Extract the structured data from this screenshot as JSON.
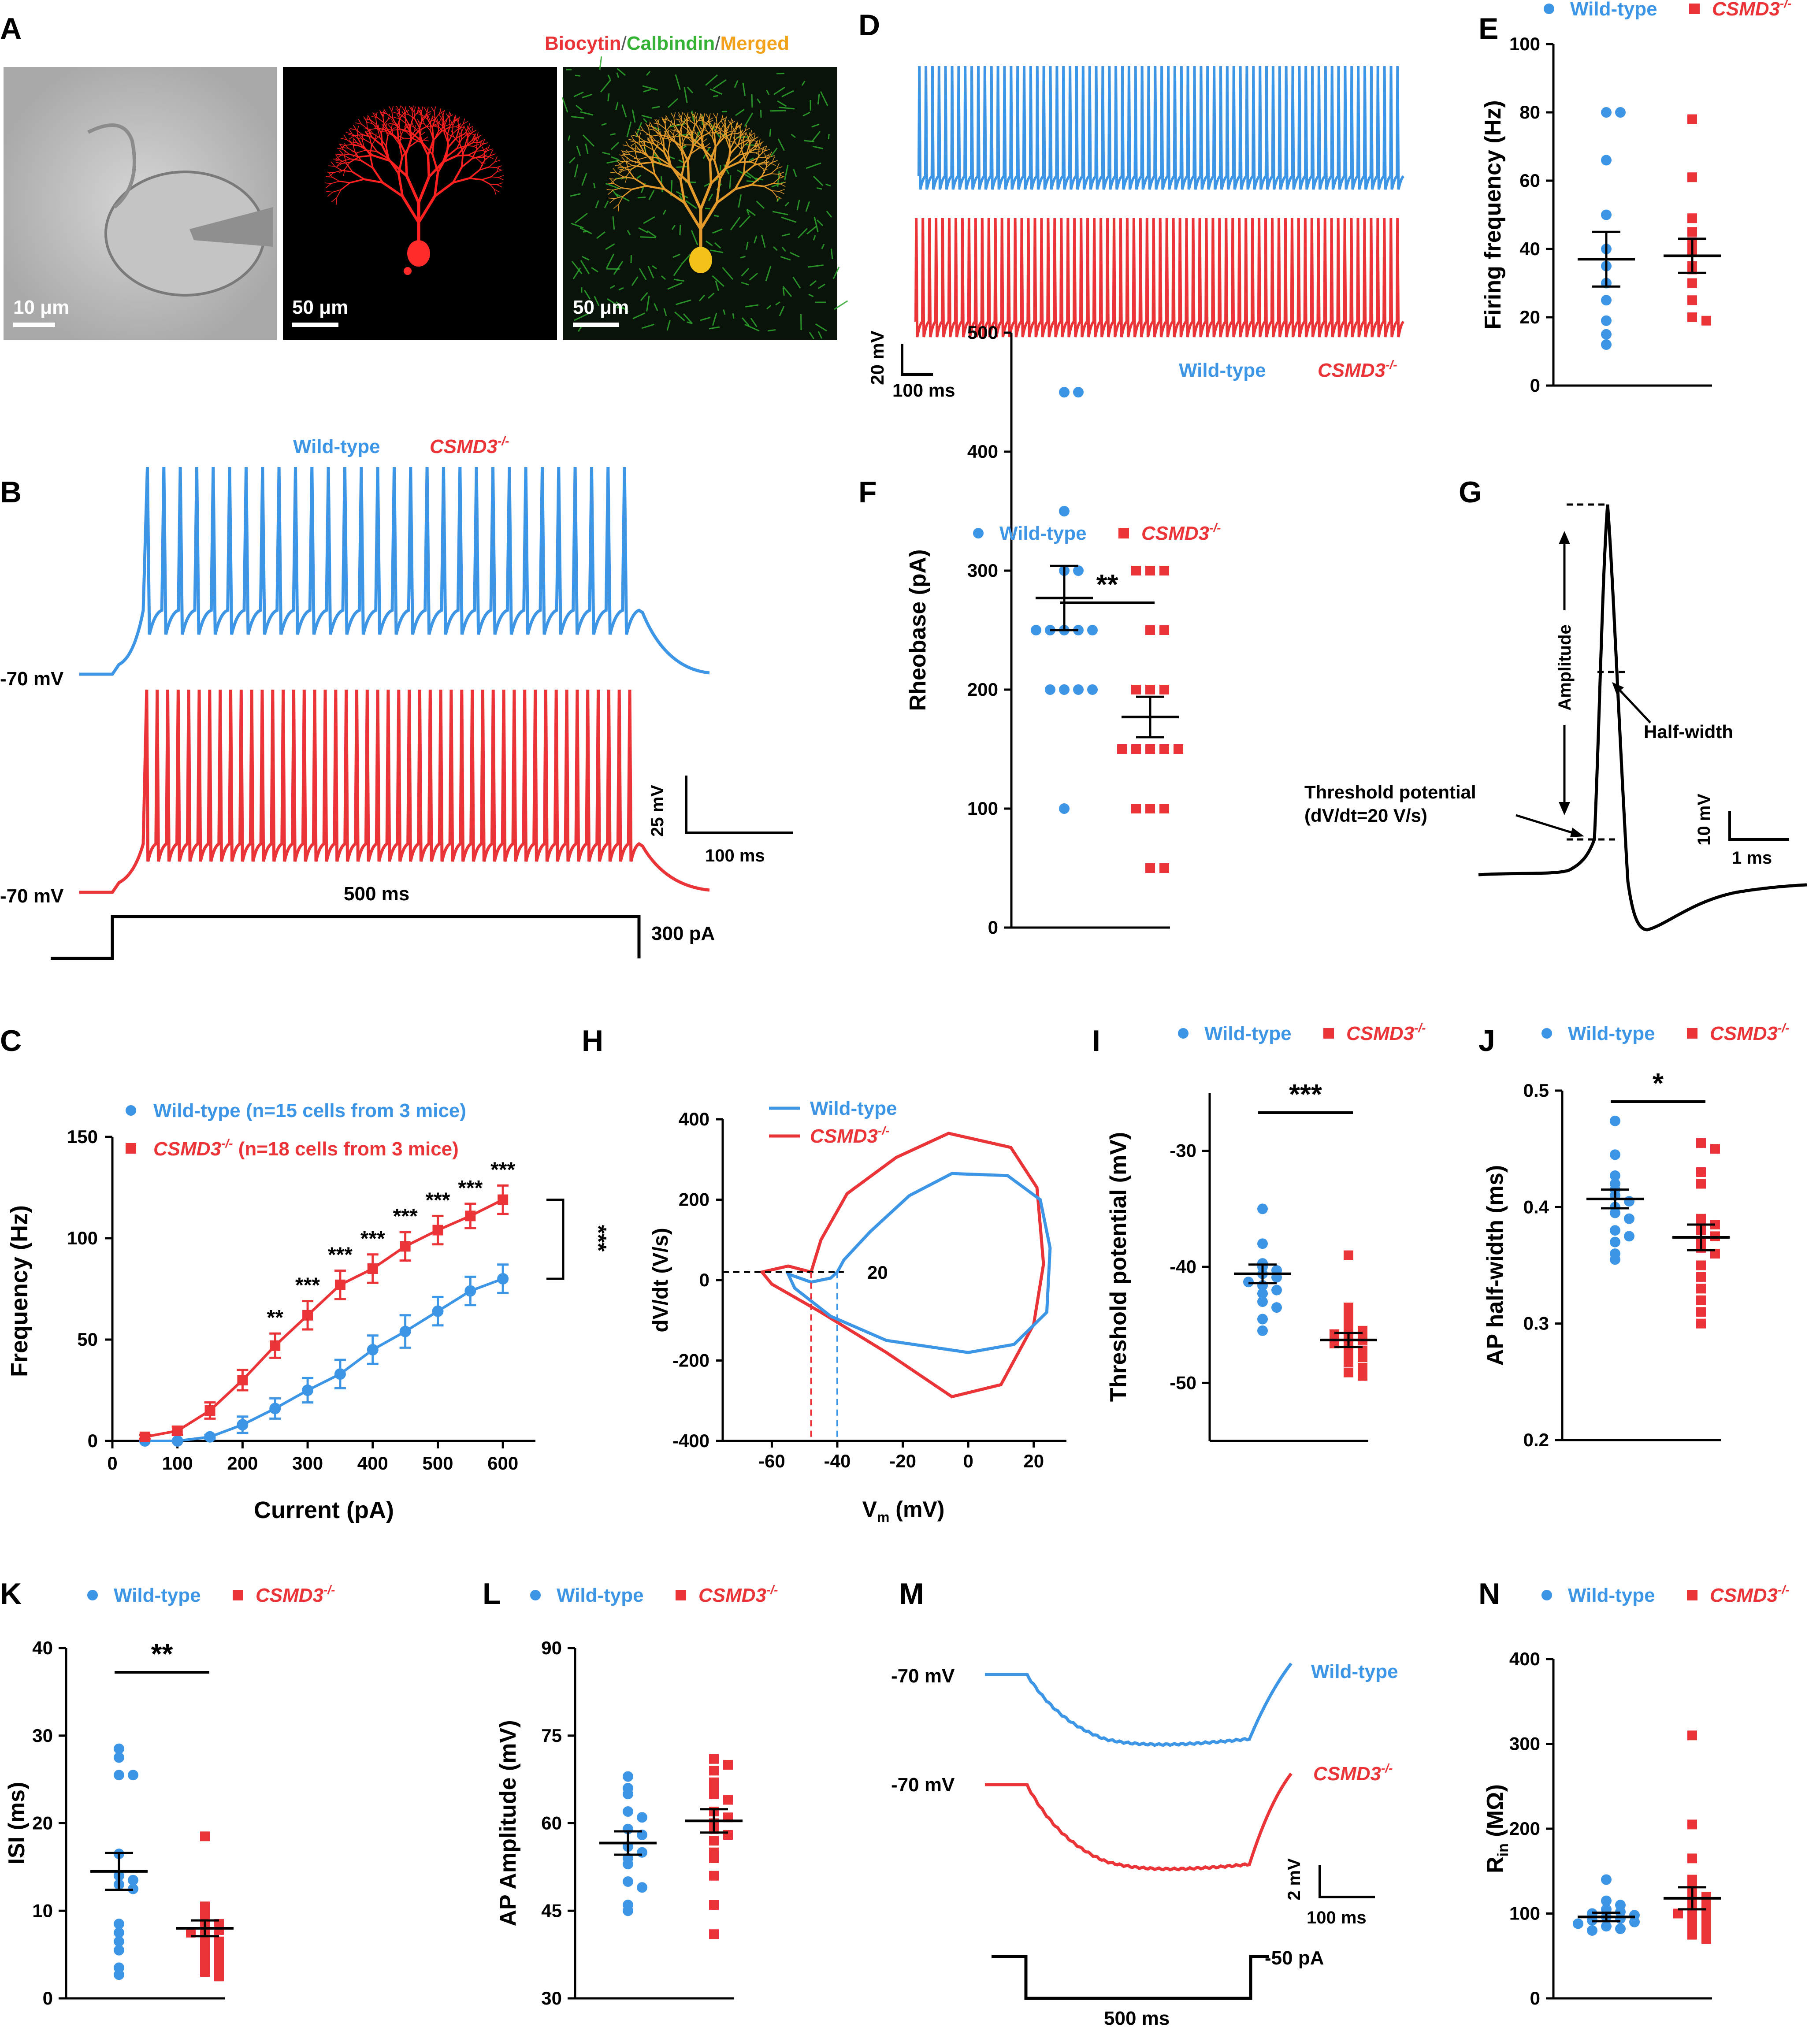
{
  "colors": {
    "wt": "#3d95e6",
    "ko": "#ea3438",
    "axis": "#000000",
    "green": "#34b234",
    "orange": "#f2a21a"
  },
  "legend": {
    "wt": "Wild-type",
    "ko": "CSMD3",
    "ko_sup": "-/-"
  },
  "panel_a": {
    "letter": "A",
    "title_parts": [
      "Biocytin",
      "/",
      "Calbindin",
      "/",
      "Merged"
    ],
    "scalebars": [
      "10 μm",
      "50 μm",
      "50 μm"
    ]
  },
  "panel_b": {
    "letter": "B",
    "vlabel_top": "-70 mV",
    "vlabel_bottom": "-70 mV",
    "duration": "500 ms",
    "current": "300 pA",
    "scale_v": "25 mV",
    "scale_t": "100 ms",
    "spikes_wt": 30,
    "spikes_ko": 47
  },
  "panel_d": {
    "letter": "D",
    "scale_v": "20 mV",
    "scale_t": "100 ms"
  },
  "panel_g": {
    "letter": "G",
    "amplitude": "Amplitude",
    "half_width": "Half-width",
    "threshold_line1": "Threshold potential",
    "threshold_line2": "(dV/dt=20 V/s)",
    "scale_v": "10 mV",
    "scale_t": "1 ms"
  },
  "panel_h": {
    "letter": "H",
    "ylabel": "dV/dt (V/s)",
    "xlabel_main": "V",
    "xlabel_sub": "m",
    "xlabel_unit": " (mV)",
    "threshold_label": "20",
    "xticks": [
      -60,
      -40,
      -20,
      0,
      20
    ],
    "yticks": [
      -400,
      -200,
      0,
      200,
      400
    ]
  },
  "panel_m": {
    "letter": "M",
    "vlabel_top": "-70 mV",
    "vlabel_bottom": "-70 mV",
    "scale_v": "2 mV",
    "scale_t": "100 ms",
    "current": "-50 pA",
    "duration": "500 ms"
  },
  "chart_data": [
    {
      "panel": "C",
      "type": "line",
      "xlabel": "Current (pA)",
      "ylabel": "Frequency (Hz)",
      "xlim": [
        0,
        650
      ],
      "ylim": [
        0,
        150
      ],
      "xticks": [
        0,
        100,
        200,
        300,
        400,
        500,
        600
      ],
      "yticks": [
        0,
        50,
        100,
        150
      ],
      "legend_wt": "Wild-type (n=15 cells from 3 mice)",
      "legend_ko": "(n=18 cells from 3 mice)",
      "x": [
        50,
        100,
        150,
        200,
        250,
        300,
        350,
        400,
        450,
        500,
        550,
        600
      ],
      "series": [
        {
          "name": "Wild-type",
          "values": [
            0,
            0,
            2,
            8,
            16,
            25,
            33,
            45,
            54,
            64,
            74,
            80
          ],
          "err": [
            0,
            0,
            1,
            4,
            5,
            6,
            7,
            7,
            8,
            7,
            7,
            7
          ]
        },
        {
          "name": "CSMD3-/-",
          "values": [
            2,
            5,
            15,
            30,
            47,
            62,
            77,
            85,
            96,
            104,
            111,
            119
          ],
          "err": [
            1,
            2,
            4,
            5,
            6,
            7,
            7,
            7,
            7,
            7,
            6,
            7
          ]
        }
      ],
      "stars": [
        "",
        "",
        "",
        "",
        "**",
        "***",
        "***",
        "***",
        "***",
        "***",
        "***",
        "***"
      ],
      "overall": "***"
    },
    {
      "panel": "E",
      "type": "scatter",
      "ylabel": "Firing frequency (Hz)",
      "ylim": [
        0,
        100
      ],
      "yticks": [
        0,
        20,
        40,
        60,
        80,
        100
      ],
      "series": [
        {
          "name": "Wild-type",
          "mean": 37,
          "sem": 8,
          "points": [
            80,
            80,
            66,
            50,
            40,
            35,
            30,
            25,
            19,
            15,
            12
          ]
        },
        {
          "name": "CSMD3-/-",
          "mean": 38,
          "sem": 5,
          "points": [
            78,
            61,
            49,
            45,
            42,
            40,
            39,
            35,
            34,
            30,
            25,
            20,
            19
          ]
        }
      ],
      "sig": ""
    },
    {
      "panel": "F",
      "type": "scatter",
      "ylabel": "Rheobase (pA)",
      "ylim": [
        0,
        500
      ],
      "yticks": [
        0,
        100,
        200,
        300,
        400,
        500
      ],
      "series": [
        {
          "name": "Wild-type",
          "mean": 277,
          "sem": 27,
          "points": [
            450,
            450,
            350,
            300,
            300,
            250,
            250,
            250,
            250,
            250,
            200,
            200,
            200,
            200,
            100
          ]
        },
        {
          "name": "CSMD3-/-",
          "mean": 177,
          "sem": 17,
          "points": [
            300,
            300,
            300,
            250,
            250,
            200,
            200,
            200,
            150,
            150,
            150,
            150,
            150,
            100,
            100,
            100,
            50,
            50
          ]
        }
      ],
      "sig": "**"
    },
    {
      "panel": "I",
      "type": "scatter",
      "ylabel": "Threshold potential (mV)",
      "ylim": [
        -55,
        -25
      ],
      "yticks": [
        -50,
        -40,
        -30
      ],
      "series": [
        {
          "name": "Wild-type",
          "mean": -40.6,
          "sem": 0.8,
          "points": [
            -35,
            -38,
            -39.7,
            -40,
            -40.3,
            -40.6,
            -40.9,
            -41.3,
            -41.6,
            -42,
            -42.3,
            -43,
            -43.5,
            -44.5,
            -45.5
          ]
        },
        {
          "name": "CSMD3-/-",
          "mean": -46.3,
          "sem": 0.6,
          "points": [
            -39,
            -43.5,
            -44.2,
            -44.8,
            -45.2,
            -45.5,
            -45.8,
            -46.1,
            -46.3,
            -46.6,
            -46.9,
            -47.2,
            -47.5,
            -47.8,
            -48.2,
            -48.7,
            -49.1,
            -49.4
          ]
        }
      ],
      "sig": "***"
    },
    {
      "panel": "J",
      "type": "scatter",
      "ylabel": "AP half-width (ms)",
      "ylim": [
        0.2,
        0.5
      ],
      "yticks": [
        0.2,
        0.3,
        0.4,
        0.5
      ],
      "series": [
        {
          "name": "Wild-type",
          "mean": 0.407,
          "sem": 0.008,
          "points": [
            0.474,
            0.445,
            0.427,
            0.42,
            0.415,
            0.41,
            0.405,
            0.4,
            0.395,
            0.39,
            0.38,
            0.375,
            0.37,
            0.36,
            0.355
          ]
        },
        {
          "name": "CSMD3-/-",
          "mean": 0.374,
          "sem": 0.011,
          "points": [
            0.455,
            0.45,
            0.43,
            0.42,
            0.39,
            0.388,
            0.385,
            0.38,
            0.375,
            0.37,
            0.365,
            0.36,
            0.35,
            0.34,
            0.33,
            0.32,
            0.31,
            0.3
          ]
        }
      ],
      "sig": "*"
    },
    {
      "panel": "K",
      "type": "scatter",
      "ylabel": "ISI (ms)",
      "ylim": [
        0,
        40
      ],
      "yticks": [
        0,
        10,
        20,
        30,
        40
      ],
      "series": [
        {
          "name": "Wild-type",
          "mean": 14.5,
          "sem": 2.1,
          "points": [
            28.5,
            27.5,
            25.5,
            25.5,
            16.5,
            14,
            13.5,
            13,
            12.5,
            8.5,
            7.5,
            6.5,
            5.5,
            3.5,
            2.7
          ]
        },
        {
          "name": "CSMD3-/-",
          "mean": 8,
          "sem": 0.9,
          "points": [
            18.5,
            10.5,
            9.5,
            9,
            8.5,
            8,
            7.8,
            7.5,
            7,
            6.5,
            6,
            5.5,
            5,
            4.5,
            4,
            3.5,
            3,
            2.5
          ]
        }
      ],
      "sig": "**"
    },
    {
      "panel": "L",
      "type": "scatter",
      "ylabel": "AP Amplitude (mV)",
      "ylim": [
        30,
        90
      ],
      "yticks": [
        30,
        45,
        60,
        75,
        90
      ],
      "series": [
        {
          "name": "Wild-type",
          "mean": 56.6,
          "sem": 2,
          "points": [
            68,
            66,
            65,
            62,
            61,
            59,
            58,
            56,
            55,
            54,
            53,
            50,
            49,
            46,
            45
          ]
        },
        {
          "name": "CSMD3-/-",
          "mean": 60.4,
          "sem": 2,
          "points": [
            71,
            70,
            69,
            67,
            66,
            65,
            64,
            62,
            61,
            60,
            59,
            58,
            57,
            55,
            54,
            51,
            46,
            41
          ]
        }
      ],
      "sig": ""
    },
    {
      "panel": "N",
      "type": "scatter",
      "ylabel_main": "R",
      "ylabel_sub": "in",
      "ylabel_unit": " (MΩ)",
      "ylim": [
        0,
        400
      ],
      "yticks": [
        0,
        100,
        200,
        300,
        400
      ],
      "series": [
        {
          "name": "Wild-type",
          "mean": 96,
          "sem": 5,
          "points": [
            140,
            115,
            110,
            105,
            102,
            100,
            98,
            96,
            94,
            92,
            90,
            88,
            85,
            82,
            80
          ]
        },
        {
          "name": "CSMD3-/-",
          "mean": 118,
          "sem": 13,
          "points": [
            310,
            205,
            165,
            140,
            130,
            125,
            120,
            115,
            110,
            105,
            100,
            100,
            95,
            90,
            85,
            80,
            75,
            70
          ]
        }
      ],
      "sig": ""
    }
  ]
}
